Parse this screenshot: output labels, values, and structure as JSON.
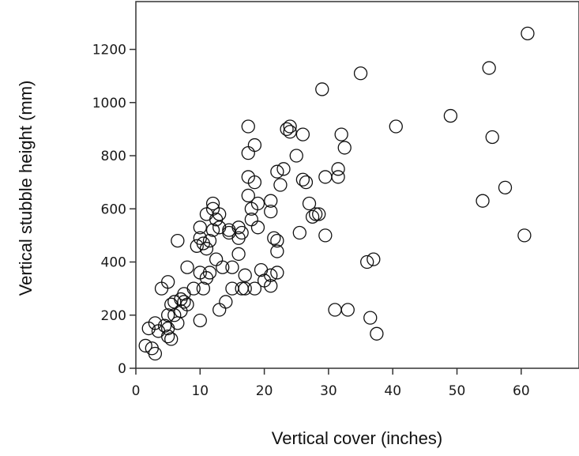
{
  "chart_data": {
    "type": "scatter",
    "xlabel": "Vertical cover (inches)",
    "ylabel": "Vertical stubble height (mm)",
    "xlim": [
      0,
      69
    ],
    "ylim": [
      0,
      1380
    ],
    "x_ticks": [
      0,
      10,
      20,
      30,
      40,
      50,
      60
    ],
    "y_ticks": [
      0,
      200,
      400,
      600,
      800,
      1000,
      1200
    ],
    "grid": false,
    "marker": "open-circle",
    "points": [
      [
        1.5,
        85
      ],
      [
        2,
        150
      ],
      [
        2.5,
        75
      ],
      [
        3,
        55
      ],
      [
        3,
        170
      ],
      [
        3.5,
        140
      ],
      [
        4,
        300
      ],
      [
        4.5,
        160
      ],
      [
        5,
        325
      ],
      [
        5,
        200
      ],
      [
        5,
        150
      ],
      [
        5,
        120
      ],
      [
        5.5,
        240
      ],
      [
        5.5,
        110
      ],
      [
        6,
        250
      ],
      [
        6,
        200
      ],
      [
        6.5,
        170
      ],
      [
        6.5,
        480
      ],
      [
        7,
        260
      ],
      [
        7,
        215
      ],
      [
        7.5,
        280
      ],
      [
        7.5,
        250
      ],
      [
        8,
        380
      ],
      [
        8,
        240
      ],
      [
        9,
        300
      ],
      [
        9.5,
        460
      ],
      [
        10,
        530
      ],
      [
        10,
        490
      ],
      [
        10,
        180
      ],
      [
        10,
        360
      ],
      [
        10.5,
        470
      ],
      [
        10.5,
        300
      ],
      [
        11,
        450
      ],
      [
        11,
        580
      ],
      [
        11,
        340
      ],
      [
        11.5,
        480
      ],
      [
        11.5,
        360
      ],
      [
        12,
        520
      ],
      [
        12,
        600
      ],
      [
        12,
        620
      ],
      [
        12.5,
        560
      ],
      [
        12.5,
        410
      ],
      [
        13,
        580
      ],
      [
        13,
        530
      ],
      [
        13,
        220
      ],
      [
        13.5,
        380
      ],
      [
        14,
        250
      ],
      [
        14.5,
        520
      ],
      [
        14.5,
        510
      ],
      [
        15,
        300
      ],
      [
        15,
        380
      ],
      [
        16,
        490
      ],
      [
        16,
        530
      ],
      [
        16,
        430
      ],
      [
        16.5,
        300
      ],
      [
        16.5,
        510
      ],
      [
        17,
        300
      ],
      [
        17,
        350
      ],
      [
        17.5,
        910
      ],
      [
        17.5,
        810
      ],
      [
        17.5,
        720
      ],
      [
        17.5,
        650
      ],
      [
        18,
        600
      ],
      [
        18,
        560
      ],
      [
        18.5,
        840
      ],
      [
        18.5,
        700
      ],
      [
        18.5,
        300
      ],
      [
        19,
        620
      ],
      [
        19,
        530
      ],
      [
        19.5,
        370
      ],
      [
        20,
        330
      ],
      [
        21,
        590
      ],
      [
        21,
        350
      ],
      [
        21,
        630
      ],
      [
        21,
        310
      ],
      [
        21.5,
        490
      ],
      [
        22,
        480
      ],
      [
        22,
        360
      ],
      [
        22,
        440
      ],
      [
        22,
        740
      ],
      [
        22.5,
        690
      ],
      [
        23,
        750
      ],
      [
        23.5,
        900
      ],
      [
        24,
        890
      ],
      [
        24,
        910
      ],
      [
        25,
        800
      ],
      [
        25.5,
        510
      ],
      [
        26,
        880
      ],
      [
        26,
        710
      ],
      [
        26.5,
        700
      ],
      [
        27,
        620
      ],
      [
        27.5,
        570
      ],
      [
        28,
        580
      ],
      [
        28.5,
        580
      ],
      [
        29,
        1050
      ],
      [
        29.5,
        720
      ],
      [
        29.5,
        500
      ],
      [
        31,
        220
      ],
      [
        31.5,
        720
      ],
      [
        31.5,
        750
      ],
      [
        32,
        880
      ],
      [
        32.5,
        830
      ],
      [
        33,
        220
      ],
      [
        35,
        1110
      ],
      [
        36,
        400
      ],
      [
        36.5,
        190
      ],
      [
        37,
        410
      ],
      [
        37.5,
        130
      ],
      [
        40.5,
        910
      ],
      [
        49,
        950
      ],
      [
        54,
        630
      ],
      [
        55,
        1130
      ],
      [
        55.5,
        870
      ],
      [
        57.5,
        680
      ],
      [
        60.5,
        500
      ],
      [
        61,
        1260
      ]
    ]
  }
}
